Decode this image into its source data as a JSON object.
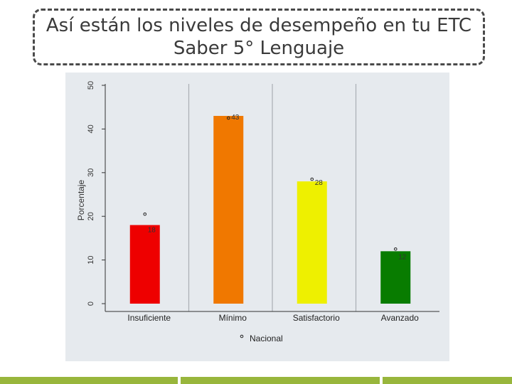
{
  "slide": {
    "title_line1": "Así están los niveles de desempeño en tu ETC",
    "title_line2": "Saber 5° Lenguaje"
  },
  "colors": {
    "panel_bg": "#e6eaee",
    "bottom_bar": "#98b63c"
  },
  "chart_data": {
    "type": "bar",
    "title": "",
    "xlabel": "",
    "ylabel": "Porcentaje",
    "ylim": [
      0,
      50
    ],
    "yticks": [
      0,
      10,
      20,
      30,
      40,
      50
    ],
    "categories": [
      "Insuficiente",
      "Mínimo",
      "Satisfactorio",
      "Avanzado"
    ],
    "values": [
      18,
      43,
      28,
      12
    ],
    "value_labels": [
      "18",
      "43",
      "28",
      "12"
    ],
    "bar_colors": [
      "#ee0000",
      "#f07800",
      "#eef000",
      "#087c00"
    ],
    "series": [
      {
        "name": "Nacional",
        "type": "point",
        "values": [
          20.5,
          42.5,
          28.5,
          12.5
        ]
      }
    ],
    "legend": {
      "position": "bottom",
      "entries": [
        "Nacional"
      ]
    },
    "grid": "vertical separators"
  }
}
